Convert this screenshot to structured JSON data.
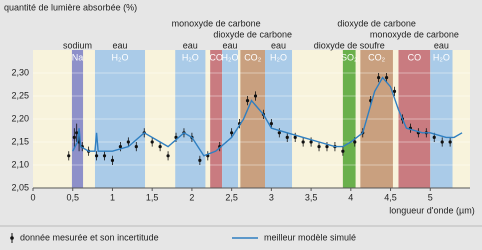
{
  "chart_data": {
    "type": "line",
    "y_label": "quantité de lumière absorbée (%)",
    "x_label": "longueur d'onde (µm)",
    "xlim": [
      0,
      5.5
    ],
    "ylim": [
      2.05,
      2.35
    ],
    "xticks": [
      0,
      {
        "value": 0.5,
        "label": "0,5"
      },
      1,
      {
        "value": 1.5,
        "label": "1,5"
      },
      2,
      {
        "value": 2.5,
        "label": "2,5"
      },
      3,
      {
        "value": 3.5,
        "label": "3,5"
      },
      4,
      {
        "value": 4.5,
        "label": "4,5"
      },
      5
    ],
    "yticks": [
      {
        "value": 2.05,
        "label": "2,05"
      },
      {
        "value": 2.1,
        "label": "2,10"
      },
      {
        "value": 2.15,
        "label": "2,15"
      },
      {
        "value": 2.2,
        "label": "2,20"
      },
      {
        "value": 2.25,
        "label": "2,25"
      },
      {
        "value": 2.3,
        "label": "2,30"
      }
    ],
    "bands": [
      {
        "name": "sodium",
        "label": "Na",
        "range": [
          0.49,
          0.63
        ],
        "color": "#8e90c9"
      },
      {
        "name": "eau",
        "label": "H₂O",
        "range": [
          0.78,
          1.41
        ],
        "color": "#aacbe8"
      },
      {
        "name": "eau",
        "label": "H₂O",
        "range": [
          1.79,
          2.17
        ],
        "color": "#aacbe8"
      },
      {
        "name": "monoxyde de carbone",
        "label": "CO",
        "range": [
          2.23,
          2.38
        ],
        "color": "#c97b80"
      },
      {
        "name": "eau",
        "label": "H₂O",
        "range": [
          2.38,
          2.58
        ],
        "color": "#aacbe8"
      },
      {
        "name": "dioxyde de carbone",
        "label": "CO₂",
        "range": [
          2.61,
          2.92
        ],
        "color": "#c9a07f"
      },
      {
        "name": "eau",
        "label": "H₂O",
        "range": [
          2.92,
          3.26
        ],
        "color": "#aacbe8"
      },
      {
        "name": "dioxyde de soufre",
        "label": "SO₂",
        "range": [
          3.9,
          4.06
        ],
        "color": "#6ab04c"
      },
      {
        "name": "dioxyde de carbone",
        "label": "CO₂",
        "range": [
          4.12,
          4.53
        ],
        "color": "#c9a07f"
      },
      {
        "name": "monoxyde de carbone",
        "label": "CO",
        "range": [
          4.6,
          5.0
        ],
        "color": "#c97b80"
      },
      {
        "name": "eau",
        "label": "H₂O",
        "range": [
          5.0,
          5.28
        ],
        "color": "#aacbe8"
      }
    ],
    "series": [
      {
        "name": "donnée mesurée et son incertitude",
        "type": "errorbar",
        "color": "#111111",
        "x": [
          0.45,
          0.52,
          0.55,
          0.58,
          0.62,
          0.7,
          0.8,
          0.9,
          1.0,
          1.1,
          1.2,
          1.3,
          1.4,
          1.5,
          1.6,
          1.7,
          1.8,
          1.9,
          2.0,
          2.1,
          2.2,
          2.35,
          2.5,
          2.6,
          2.7,
          2.8,
          2.9,
          3.0,
          3.1,
          3.2,
          3.3,
          3.4,
          3.5,
          3.6,
          3.7,
          3.8,
          3.9,
          4.05,
          4.15,
          4.25,
          4.35,
          4.45,
          4.55,
          4.65,
          4.75,
          4.85,
          4.95,
          5.05,
          5.15,
          5.25
        ],
        "values": [
          2.12,
          2.16,
          2.17,
          2.15,
          2.14,
          2.13,
          2.12,
          2.12,
          2.11,
          2.14,
          2.15,
          2.14,
          2.17,
          2.15,
          2.14,
          2.12,
          2.16,
          2.17,
          2.16,
          2.11,
          2.12,
          2.14,
          2.17,
          2.19,
          2.24,
          2.25,
          2.21,
          2.19,
          2.17,
          2.16,
          2.16,
          2.15,
          2.15,
          2.14,
          2.14,
          2.14,
          2.13,
          2.15,
          2.17,
          2.24,
          2.29,
          2.29,
          2.26,
          2.2,
          2.18,
          2.17,
          2.17,
          2.16,
          2.15,
          2.15
        ],
        "errors": [
          0.01,
          0.02,
          0.02,
          0.02,
          0.01,
          0.01,
          0.01,
          0.01,
          0.01,
          0.01,
          0.01,
          0.01,
          0.01,
          0.01,
          0.01,
          0.01,
          0.01,
          0.01,
          0.01,
          0.01,
          0.01,
          0.01,
          0.01,
          0.01,
          0.01,
          0.01,
          0.01,
          0.01,
          0.01,
          0.01,
          0.01,
          0.01,
          0.01,
          0.01,
          0.01,
          0.01,
          0.01,
          0.01,
          0.01,
          0.01,
          0.01,
          0.01,
          0.01,
          0.01,
          0.01,
          0.01,
          0.01,
          0.01,
          0.01,
          0.01
        ]
      },
      {
        "name": "meilleur modèle simulé",
        "type": "line",
        "color": "#2f7fc1",
        "x": [
          0.5,
          0.56,
          0.58,
          0.6,
          0.7,
          0.78,
          0.8,
          0.82,
          1.0,
          1.2,
          1.4,
          1.6,
          1.7,
          1.9,
          2.0,
          2.15,
          2.3,
          2.5,
          2.65,
          2.75,
          2.9,
          3.0,
          3.2,
          3.4,
          3.6,
          3.8,
          3.9,
          4.0,
          4.15,
          4.3,
          4.4,
          4.5,
          4.6,
          4.7,
          4.9,
          5.0,
          5.2,
          5.3,
          5.4
        ],
        "values": [
          2.13,
          2.15,
          2.18,
          2.14,
          2.13,
          2.13,
          2.17,
          2.13,
          2.13,
          2.14,
          2.17,
          2.15,
          2.14,
          2.17,
          2.16,
          2.12,
          2.13,
          2.16,
          2.2,
          2.24,
          2.21,
          2.18,
          2.17,
          2.16,
          2.15,
          2.14,
          2.14,
          2.15,
          2.17,
          2.26,
          2.29,
          2.27,
          2.22,
          2.18,
          2.17,
          2.17,
          2.16,
          2.16,
          2.17
        ]
      }
    ]
  }
}
